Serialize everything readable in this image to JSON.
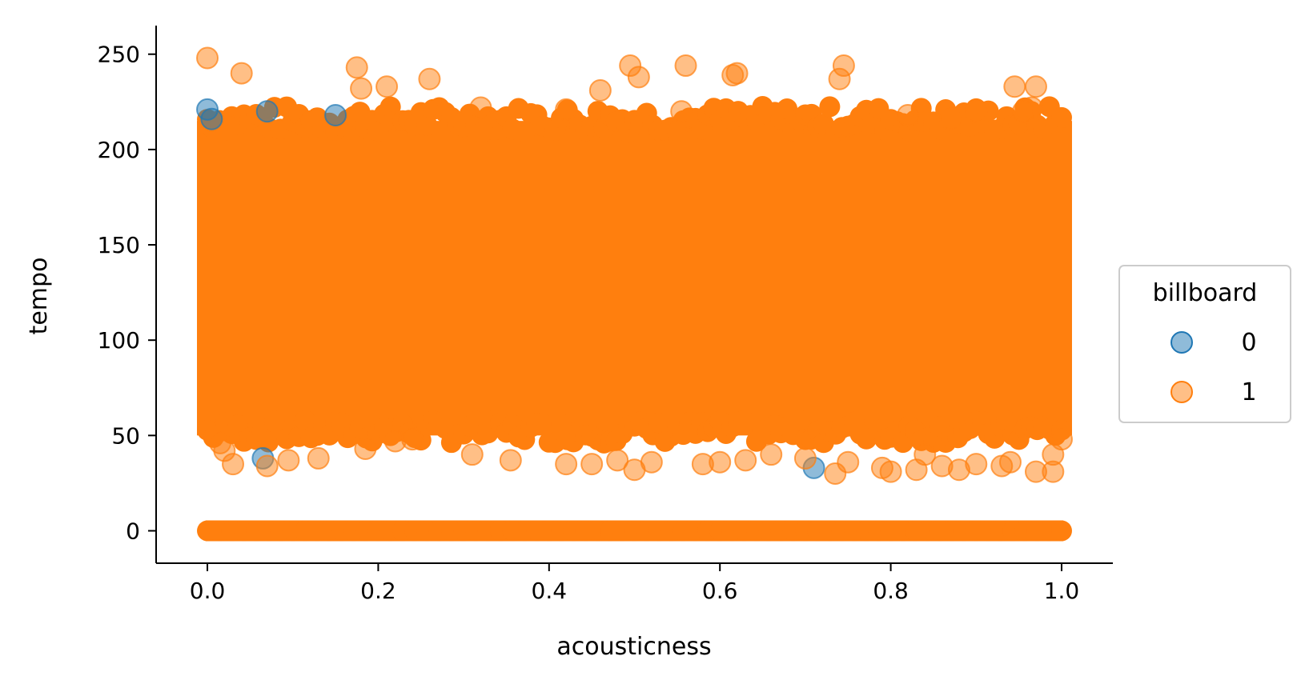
{
  "chart_data": {
    "type": "scatter",
    "title": "",
    "xlabel": "acousticness",
    "ylabel": "tempo",
    "xlim": [
      -0.06,
      1.06
    ],
    "ylim": [
      -17,
      265
    ],
    "xticks": [
      0.0,
      0.2,
      0.4,
      0.6,
      0.8,
      1.0
    ],
    "xtick_labels": [
      "0.0",
      "0.2",
      "0.4",
      "0.6",
      "0.8",
      "1.0"
    ],
    "yticks": [
      0,
      50,
      100,
      150,
      200,
      250
    ],
    "ytick_labels": [
      "0",
      "50",
      "100",
      "150",
      "200",
      "250"
    ],
    "grid": false,
    "legend": {
      "title": "billboard",
      "placement": "center-right-outside",
      "entries": [
        {
          "label": "0",
          "color": "#1f77b4"
        },
        {
          "label": "1",
          "color": "#ff7f0e"
        }
      ]
    },
    "dense_band": {
      "x_range": [
        0.0,
        1.0
      ],
      "y_range": [
        50,
        215
      ],
      "color": "#ff7f0e"
    },
    "series": [
      {
        "name": "0",
        "color": "#1f77b4",
        "points": [
          [
            0.0,
            221
          ],
          [
            0.07,
            220
          ],
          [
            0.065,
            38
          ],
          [
            0.71,
            33
          ],
          [
            0.005,
            216
          ],
          [
            0.15,
            218
          ]
        ]
      },
      {
        "name": "1",
        "color": "#ff7f0e",
        "points": [
          [
            0.0,
            248
          ],
          [
            0.04,
            240
          ],
          [
            0.175,
            243
          ],
          [
            0.18,
            232
          ],
          [
            0.21,
            233
          ],
          [
            0.26,
            237
          ],
          [
            0.495,
            244
          ],
          [
            0.505,
            238
          ],
          [
            0.56,
            244
          ],
          [
            0.615,
            239
          ],
          [
            0.62,
            240
          ],
          [
            0.46,
            231
          ],
          [
            0.74,
            237
          ],
          [
            0.745,
            244
          ],
          [
            0.945,
            233
          ],
          [
            0.97,
            233
          ],
          [
            0.32,
            222
          ],
          [
            0.42,
            221
          ],
          [
            0.555,
            220
          ],
          [
            0.965,
            222
          ],
          [
            0.955,
            220
          ],
          [
            0.82,
            218
          ],
          [
            0.87,
            216
          ],
          [
            0.9,
            220
          ],
          [
            0.03,
            35
          ],
          [
            0.07,
            34
          ],
          [
            0.095,
            37
          ],
          [
            0.13,
            38
          ],
          [
            0.185,
            43
          ],
          [
            0.22,
            47
          ],
          [
            0.24,
            48
          ],
          [
            0.355,
            37
          ],
          [
            0.42,
            35
          ],
          [
            0.45,
            35
          ],
          [
            0.48,
            37
          ],
          [
            0.5,
            32
          ],
          [
            0.52,
            36
          ],
          [
            0.58,
            35
          ],
          [
            0.63,
            37
          ],
          [
            0.735,
            30
          ],
          [
            0.79,
            33
          ],
          [
            0.8,
            31
          ],
          [
            0.83,
            32
          ],
          [
            0.86,
            34
          ],
          [
            0.88,
            32
          ],
          [
            0.9,
            35
          ],
          [
            0.93,
            34
          ],
          [
            0.97,
            31
          ],
          [
            0.99,
            31
          ],
          [
            0.66,
            40
          ],
          [
            0.7,
            38
          ],
          [
            0.31,
            40
          ],
          [
            0.015,
            46
          ],
          [
            0.02,
            42
          ],
          [
            1.0,
            48
          ],
          [
            0.99,
            40
          ],
          [
            0.6,
            36
          ],
          [
            0.75,
            36
          ],
          [
            0.94,
            36
          ],
          [
            0.84,
            40
          ]
        ]
      }
    ]
  }
}
